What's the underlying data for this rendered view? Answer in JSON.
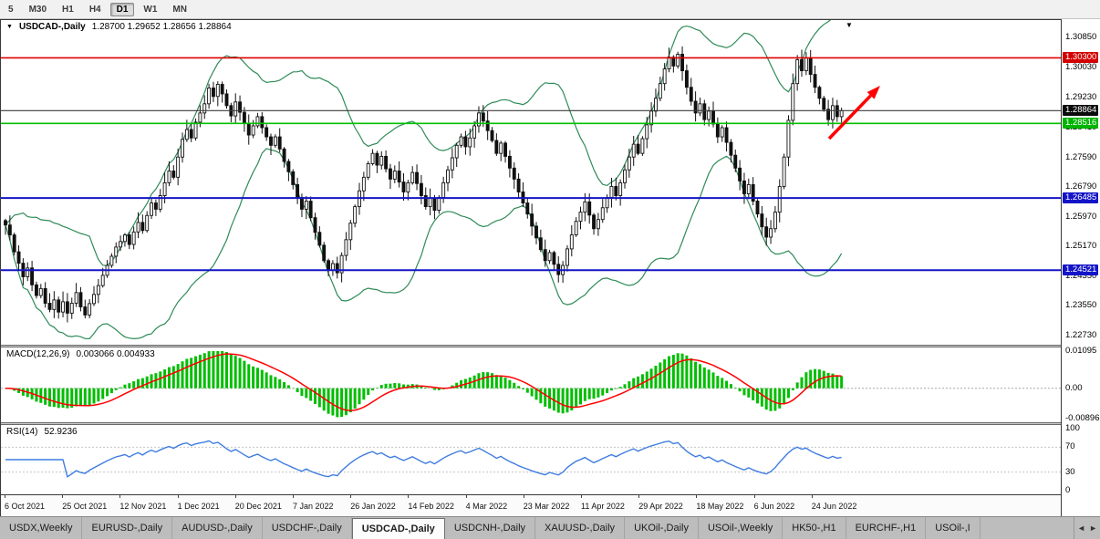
{
  "toolbar": {
    "timeframes": [
      {
        "label": "5",
        "active": false
      },
      {
        "label": "M30",
        "active": false
      },
      {
        "label": "H1",
        "active": false
      },
      {
        "label": "H4",
        "active": false
      },
      {
        "label": "D1",
        "active": true
      },
      {
        "label": "W1",
        "active": false
      },
      {
        "label": "MN",
        "active": false
      }
    ]
  },
  "chart": {
    "title": "USDCAD-,Daily",
    "ohlc_text": "1.28700 1.29652 1.28656 1.28864",
    "price_axis": {
      "ticks": [
        "1.30850",
        "1.30030",
        "1.29230",
        "1.28410",
        "1.27590",
        "1.26790",
        "1.25970",
        "1.25170",
        "1.24350",
        "1.23550",
        "1.22730"
      ],
      "view_high": 1.3133,
      "view_low": 1.2249
    },
    "levels": [
      {
        "label": "1.30300",
        "value": 1.303,
        "color": "#e00000",
        "tag_bg": "#d40000",
        "lw": 1.6
      },
      {
        "label": "1.28864",
        "value": 1.28864,
        "color": "#3c3c3c",
        "tag_bg": "#0a0a0a",
        "lw": 1.2
      },
      {
        "label": "1.28516",
        "value": 1.28516,
        "color": "#00c000",
        "tag_bg": "#00b400",
        "lw": 1.6
      },
      {
        "label": "1.26485",
        "value": 1.26485,
        "color": "#1414c8",
        "tag_bg": "#1414c8",
        "lw": 2
      },
      {
        "label": "1.24521",
        "value": 1.24521,
        "color": "#1414c8",
        "tag_bg": "#1414c8",
        "lw": 2
      }
    ],
    "trend_arrow": {
      "from": [
        908,
        130
      ],
      "to": [
        964,
        72
      ],
      "color": "#ff0000"
    }
  },
  "chart_data": {
    "type": "candlestick",
    "symbol": "USDCAD-",
    "period": "Daily",
    "x_labels": [
      "6 Oct 2021",
      "25 Oct 2021",
      "12 Nov 2021",
      "1 Dec 2021",
      "20 Dec 2021",
      "7 Jan 2022",
      "26 Jan 2022",
      "14 Feb 2022",
      "4 Mar 2022",
      "23 Mar 2022",
      "11 Apr 2022",
      "29 Apr 2022",
      "18 May 2022",
      "6 Jun 2022",
      "24 Jun 2022"
    ],
    "closes": [
      1.2575,
      1.2548,
      1.2502,
      1.2471,
      1.2434,
      1.2458,
      1.2412,
      1.2383,
      1.2402,
      1.2362,
      1.2345,
      1.2371,
      1.2338,
      1.2366,
      1.2335,
      1.2362,
      1.2391,
      1.2352,
      1.233,
      1.2361,
      1.2386,
      1.241,
      1.2438,
      1.2465,
      1.249,
      1.2515,
      1.253,
      1.2548,
      1.2522,
      1.2556,
      1.2582,
      1.256,
      1.2601,
      1.2635,
      1.2618,
      1.2655,
      1.269,
      1.2722,
      1.2705,
      1.276,
      1.2808,
      1.2835,
      1.2812,
      1.2855,
      1.288,
      1.2905,
      1.2948,
      1.2925,
      1.2958,
      1.2932,
      1.29,
      1.2872,
      1.291,
      1.2882,
      1.2851,
      1.282,
      1.2845,
      1.287,
      1.284,
      1.2815,
      1.2792,
      1.2815,
      1.2782,
      1.2748,
      1.272,
      1.2685,
      1.265,
      1.2618,
      1.264,
      1.2595,
      1.2555,
      1.252,
      1.2478,
      1.2452,
      1.247,
      1.2445,
      1.2492,
      1.2535,
      1.258,
      1.2625,
      1.2668,
      1.2705,
      1.2742,
      1.277,
      1.2738,
      1.2762,
      1.2728,
      1.27,
      1.2722,
      1.2692,
      1.2665,
      1.269,
      1.2718,
      1.2688,
      1.2655,
      1.2625,
      1.2648,
      1.2615,
      1.265,
      1.269,
      1.2725,
      1.2758,
      1.2792,
      1.2815,
      1.2788,
      1.2812,
      1.2845,
      1.288,
      1.2858,
      1.2832,
      1.2805,
      1.277,
      1.2798,
      1.2762,
      1.273,
      1.27,
      1.2665,
      1.2635,
      1.2605,
      1.2572,
      1.254,
      1.2508,
      1.2478,
      1.25,
      1.2468,
      1.244,
      1.2465,
      1.251,
      1.2548,
      1.2585,
      1.261,
      1.2638,
      1.2602,
      1.2565,
      1.259,
      1.2622,
      1.265,
      1.268,
      1.2655,
      1.269,
      1.2725,
      1.276,
      1.2795,
      1.277,
      1.281,
      1.2848,
      1.2885,
      1.292,
      1.296,
      1.3,
      1.3032,
      1.3008,
      1.304,
      1.2995,
      1.295,
      1.2912,
      1.288,
      1.2905,
      1.2862,
      1.2885,
      1.285,
      1.2815,
      1.284,
      1.28,
      1.2765,
      1.273,
      1.2695,
      1.266,
      1.2685,
      1.264,
      1.2605,
      1.257,
      1.2542,
      1.2565,
      1.261,
      1.268,
      1.276,
      1.286,
      1.296,
      1.3025,
      1.2995,
      1.303,
      1.2985,
      1.295,
      1.292,
      1.289,
      1.2862,
      1.29,
      1.287,
      1.28864
    ],
    "indicators": {
      "bollinger": {
        "period": 20,
        "deviation": 2,
        "color": "#2e8b57"
      },
      "macd": {
        "label": "MACD(12,26,9)",
        "current": "0.003066 0.004933",
        "axis_ticks": [
          "0.01095",
          "0.00",
          "-0.00896"
        ],
        "axis_values": [
          0.01095,
          0,
          -0.00896
        ],
        "hist_color": "#00be00",
        "signal_color": "#ff0000"
      },
      "rsi": {
        "label": "RSI(14)",
        "current": "52.9236",
        "axis_ticks": [
          "100",
          "70",
          "30",
          "0"
        ],
        "axis_values": [
          100,
          70,
          30,
          0
        ],
        "levels": [
          70,
          30
        ],
        "color": "#3f7de0"
      }
    }
  },
  "tabs": {
    "items": [
      {
        "label": "USDX,Weekly",
        "active": false
      },
      {
        "label": "EURUSD-,Daily",
        "active": false
      },
      {
        "label": "AUDUSD-,Daily",
        "active": false
      },
      {
        "label": "USDCHF-,Daily",
        "active": false
      },
      {
        "label": "USDCAD-,Daily",
        "active": true
      },
      {
        "label": "USDCNH-,Daily",
        "active": false
      },
      {
        "label": "XAUUSD-,Daily",
        "active": false
      },
      {
        "label": "UKOil-,Daily",
        "active": false
      },
      {
        "label": "USOil-,Weekly",
        "active": false
      },
      {
        "label": "HK50-,H1",
        "active": false
      },
      {
        "label": "EURCHF-,H1",
        "active": false
      },
      {
        "label": "USOil-,I",
        "active": false
      }
    ],
    "scroll_left": "◄",
    "scroll_right": "►"
  }
}
